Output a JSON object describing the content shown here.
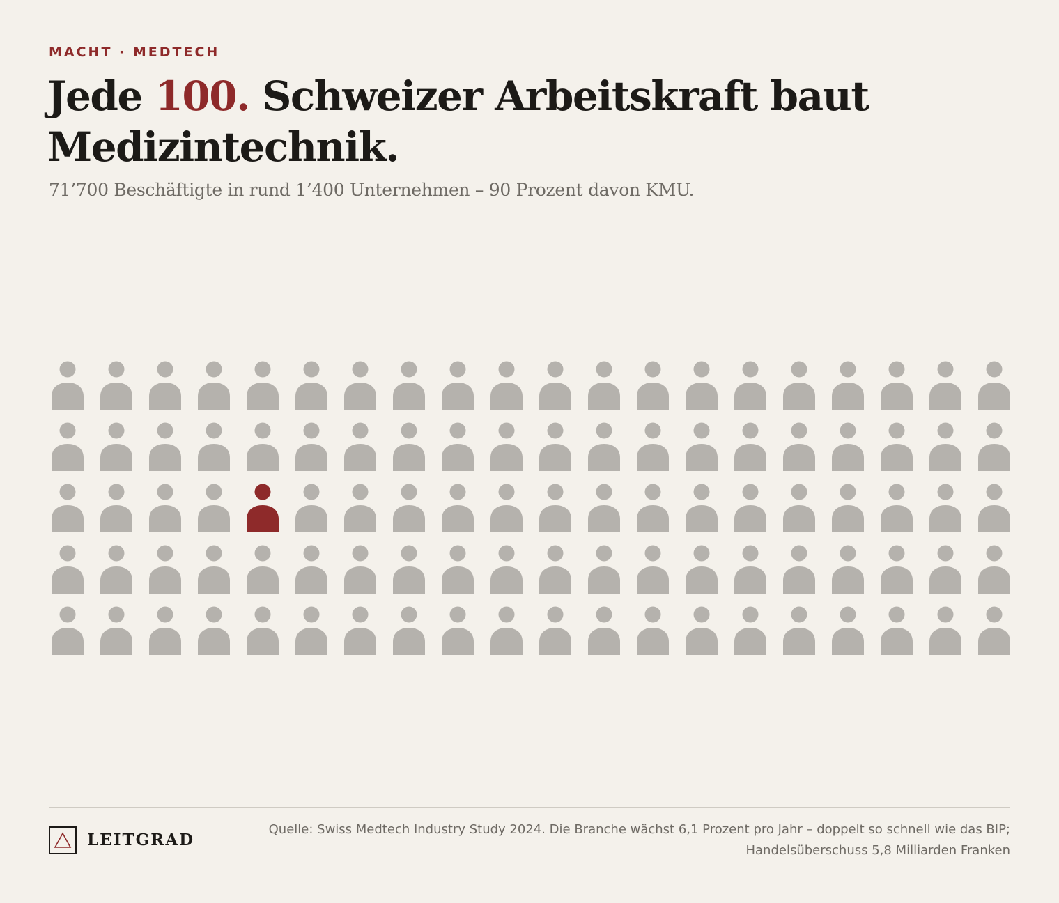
{
  "kicker": "MACHT · MEDTECH",
  "headline": {
    "part1": "Jede ",
    "accent": "100.",
    "part2": " Schweizer Arbeitskraft baut Medizintechnik."
  },
  "subtitle": "71’700 Beschäftigte in rund 1’400 Unternehmen – 90 Prozent davon KMU.",
  "chart_data": {
    "type": "pictogram",
    "total": 100,
    "rows": 5,
    "columns": 20,
    "highlighted_index": 44,
    "highlighted_count": 1
  },
  "colors": {
    "background": "#f4f1eb",
    "accent": "#8e2a2a",
    "icon_default": "#b5b2ad",
    "text": "#1c1a17",
    "muted": "#6e6a64"
  },
  "footer": {
    "logo_icon": "triangle-icon",
    "logo_text": "LEITGRAD",
    "source": "Quelle: Swiss Medtech Industry Study 2024. Die Branche wächst 6,1 Prozent pro Jahr – doppelt so schnell wie das BIP; Handelsüberschuss 5,8 Milliarden Franken"
  }
}
